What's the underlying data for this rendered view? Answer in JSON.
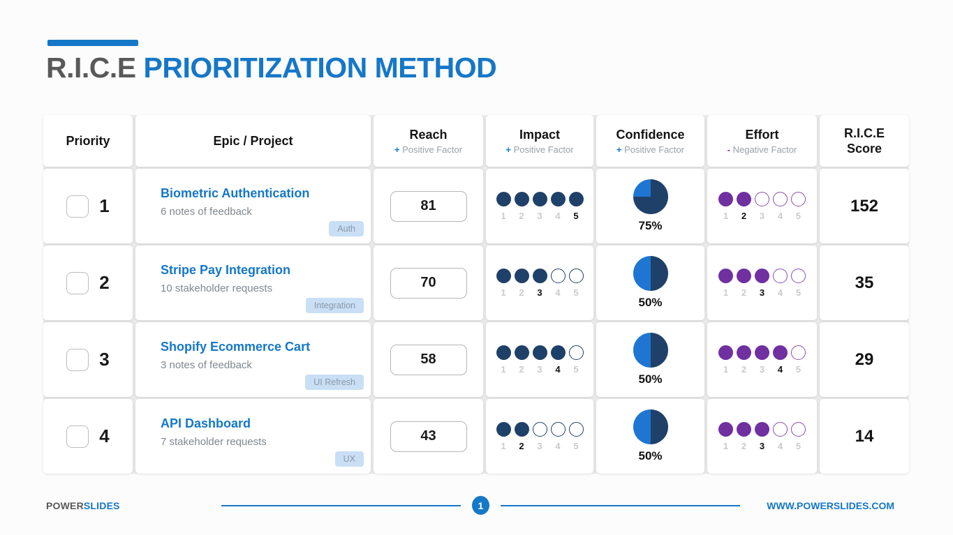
{
  "title": {
    "part1": "R.I.C.E",
    "part2": " PRIORITIZATION METHOD"
  },
  "table": {
    "scale_labels": [
      "1",
      "2",
      "3",
      "4",
      "5"
    ],
    "headers": {
      "priority": "Priority",
      "epic": "Epic / Project",
      "reach_label": "Reach",
      "reach_sign": "+",
      "reach_factor": "Positive Factor",
      "impact_label": "Impact",
      "impact_sign": "+",
      "impact_factor": "Positive Factor",
      "confidence_label": "Confidence",
      "confidence_sign": "+",
      "confidence_factor": "Positive Factor",
      "effort_label": "Effort",
      "effort_sign": "-",
      "effort_factor": "Negative Factor",
      "score_line1": "R.I.C.E",
      "score_line2": "Score"
    },
    "rows": [
      {
        "priority": "1",
        "title": "Biometric Authentication",
        "subtitle": "6 notes of feedback",
        "tag": "Auth",
        "reach": "81",
        "impact": 5,
        "confidence": 75,
        "confidence_label": "75%",
        "effort": 2,
        "score": "152"
      },
      {
        "priority": "2",
        "title": "Stripe Pay Integration",
        "subtitle": "10 stakeholder requests",
        "tag": "Integration",
        "reach": "70",
        "impact": 3,
        "confidence": 50,
        "confidence_label": "50%",
        "effort": 3,
        "score": "35"
      },
      {
        "priority": "3",
        "title": "Shopify Ecommerce Cart",
        "subtitle": "3 notes of feedback",
        "tag": "UI Refresh",
        "reach": "58",
        "impact": 4,
        "confidence": 50,
        "confidence_label": "50%",
        "effort": 4,
        "score": "29"
      },
      {
        "priority": "4",
        "title": "API Dashboard",
        "subtitle": "7 stakeholder requests",
        "tag": "UX",
        "reach": "43",
        "impact": 2,
        "confidence": 50,
        "confidence_label": "50%",
        "effort": 3,
        "score": "14"
      }
    ]
  },
  "footer": {
    "brand_part1": "POWER",
    "brand_part2": "SLIDES",
    "page_number": "1",
    "website": "WWW.POWERSLIDES.COM"
  },
  "colors": {
    "accent_blue": "#1577C8",
    "navy": "#1F4068",
    "pie_light_blue": "#1E76D2",
    "purple": "#7030A0",
    "title_gray": "#595959",
    "tag_bg": "#C9DFF5",
    "tag_text": "#8A97A8"
  }
}
